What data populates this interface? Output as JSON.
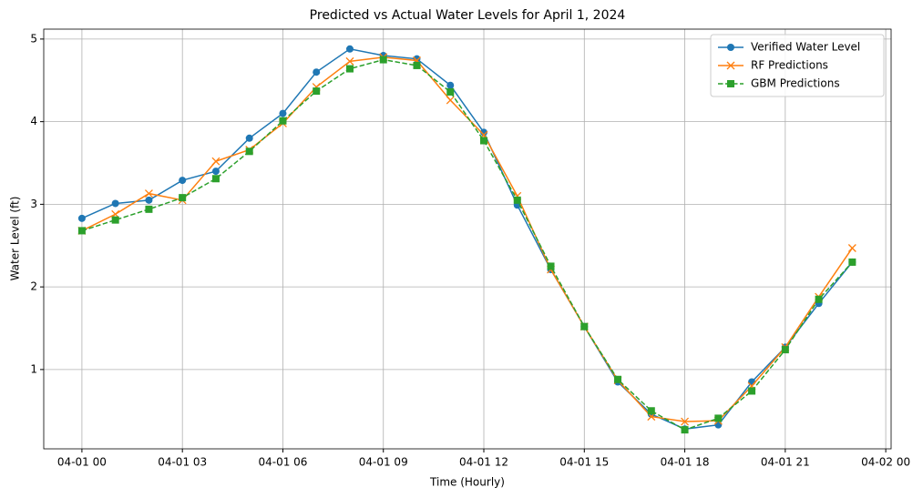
{
  "chart_data": {
    "type": "line",
    "title": "Predicted vs Actual Water Levels for April 1, 2024",
    "x_label": "Time (Hourly)",
    "y_label": "Water Level (ft)",
    "x": [
      0,
      1,
      2,
      3,
      4,
      5,
      6,
      7,
      8,
      9,
      10,
      11,
      12,
      13,
      14,
      15,
      16,
      17,
      18,
      19,
      20,
      21,
      22,
      23
    ],
    "xlim": [
      -1.14,
      24.16
    ],
    "xticks": [
      {
        "value": 0,
        "label": "04-01 00"
      },
      {
        "value": 3,
        "label": "04-01 03"
      },
      {
        "value": 6,
        "label": "04-01 06"
      },
      {
        "value": 9,
        "label": "04-01 09"
      },
      {
        "value": 12,
        "label": "04-01 12"
      },
      {
        "value": 15,
        "label": "04-01 15"
      },
      {
        "value": 18,
        "label": "04-01 18"
      },
      {
        "value": 21,
        "label": "04-01 21"
      },
      {
        "value": 24,
        "label": "04-02 00"
      }
    ],
    "ylim": [
      0.04,
      5.12
    ],
    "yticks": [
      1,
      2,
      3,
      4,
      5
    ],
    "grid": true,
    "legend": "upper-right",
    "series": [
      {
        "name": "Verified Water Level",
        "color": "#1f77b4",
        "marker": "circle",
        "dash": "solid",
        "values": [
          2.83,
          3.01,
          3.05,
          3.29,
          3.4,
          3.8,
          4.1,
          4.6,
          4.88,
          4.8,
          4.76,
          4.44,
          3.87,
          2.99,
          2.21,
          1.52,
          0.85,
          0.46,
          0.28,
          0.33,
          0.85,
          1.27,
          1.8,
          2.3
        ]
      },
      {
        "name": "RF Predictions",
        "color": "#ff7f0e",
        "marker": "x",
        "dash": "solid",
        "values": [
          2.68,
          2.88,
          3.13,
          3.05,
          3.52,
          3.66,
          3.98,
          4.42,
          4.73,
          4.78,
          4.74,
          4.26,
          3.84,
          3.1,
          2.21,
          1.52,
          0.87,
          0.43,
          0.37,
          0.38,
          0.8,
          1.27,
          1.88,
          2.47
        ]
      },
      {
        "name": "GBM Predictions",
        "color": "#2ca02c",
        "marker": "square",
        "dash": "dashed",
        "values": [
          2.68,
          2.81,
          2.94,
          3.08,
          3.31,
          3.64,
          4.01,
          4.37,
          4.64,
          4.75,
          4.68,
          4.36,
          3.77,
          3.05,
          2.25,
          1.52,
          0.88,
          0.5,
          0.27,
          0.41,
          0.74,
          1.24,
          1.85,
          2.3
        ]
      }
    ]
  }
}
